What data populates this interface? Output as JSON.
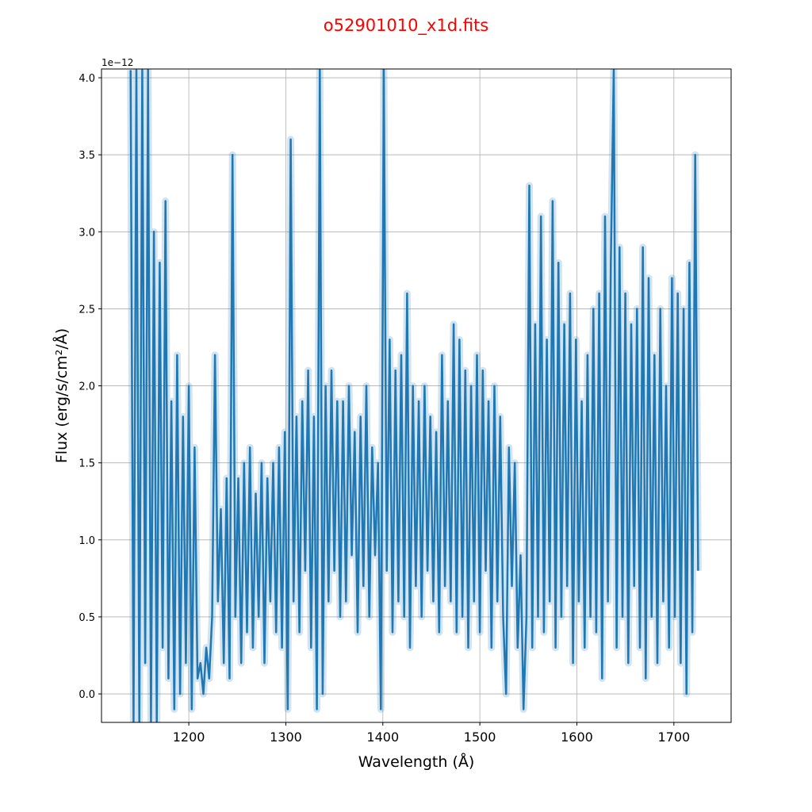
{
  "chart_data": {
    "type": "line",
    "title": "o52901010_x1d.fits",
    "title_color": "#ff0000",
    "xlabel": "Wavelength (Å)",
    "ylabel": "Flux (erg/s/cm²/Å)",
    "y_offset_label": "1e−12",
    "xlim": [
      1110,
      1759
    ],
    "ylim": [
      -0.185,
      4.057
    ],
    "grid": true,
    "line_color": "#1f77b4",
    "x_ticks": [
      1200,
      1300,
      1400,
      1500,
      1600,
      1700
    ],
    "x_tick_labels": [
      "1200",
      "1300",
      "1400",
      "1500",
      "1600",
      "1700"
    ],
    "y_ticks": [
      0.0,
      0.5,
      1.0,
      1.5,
      2.0,
      2.5,
      3.0,
      3.5,
      4.0
    ],
    "y_tick_labels": [
      "0.0",
      "0.5",
      "1.0",
      "1.5",
      "2.0",
      "2.5",
      "3.0",
      "3.5",
      "4.0"
    ],
    "series": [
      {
        "name": "flux (1e-12)",
        "x_start": 1140,
        "x_step": 3,
        "values": [
          4.05,
          -0.18,
          4.05,
          -0.18,
          4.05,
          0.2,
          4.05,
          -0.18,
          3.0,
          -0.18,
          2.8,
          0.3,
          3.2,
          0.1,
          1.9,
          -0.1,
          2.2,
          0.0,
          1.8,
          0.2,
          2.0,
          -0.1,
          1.6,
          0.1,
          0.2,
          0.0,
          0.3,
          0.1,
          0.5,
          2.2,
          0.6,
          1.2,
          0.2,
          1.4,
          0.1,
          3.5,
          0.5,
          1.4,
          0.2,
          1.5,
          0.4,
          1.6,
          0.3,
          1.3,
          0.5,
          1.5,
          0.2,
          1.4,
          0.6,
          1.5,
          0.4,
          1.6,
          0.3,
          1.7,
          -0.1,
          3.6,
          0.6,
          1.8,
          0.4,
          1.9,
          0.8,
          2.1,
          0.3,
          1.8,
          -0.1,
          4.05,
          0.0,
          2.0,
          0.6,
          2.1,
          0.8,
          1.9,
          0.5,
          1.9,
          0.6,
          2.0,
          0.9,
          1.7,
          0.4,
          1.8,
          0.7,
          2.0,
          0.5,
          1.6,
          0.9,
          1.5,
          -0.1,
          4.05,
          0.8,
          2.3,
          0.4,
          2.1,
          0.6,
          2.2,
          0.5,
          2.6,
          0.3,
          2.0,
          0.7,
          1.9,
          0.5,
          2.0,
          0.8,
          1.8,
          0.6,
          1.7,
          0.4,
          2.2,
          0.7,
          1.9,
          0.6,
          2.4,
          0.4,
          2.3,
          0.5,
          2.1,
          0.3,
          2.0,
          0.6,
          2.2,
          0.4,
          2.1,
          0.8,
          1.9,
          0.3,
          2.0,
          0.6,
          1.8,
          0.5,
          0.0,
          1.6,
          0.7,
          1.5,
          0.3,
          0.9,
          -0.1,
          0.5,
          3.3,
          0.3,
          2.4,
          0.5,
          3.1,
          0.4,
          2.3,
          0.6,
          3.2,
          0.3,
          2.8,
          0.5,
          2.4,
          0.7,
          2.6,
          0.2,
          2.3,
          0.6,
          1.9,
          0.3,
          2.2,
          0.5,
          2.5,
          0.4,
          2.6,
          0.1,
          3.1,
          0.6,
          2.8,
          4.05,
          0.3,
          2.9,
          0.5,
          2.6,
          0.2,
          2.4,
          0.7,
          2.5,
          0.3,
          2.9,
          0.1,
          2.7,
          0.5,
          2.2,
          0.2,
          2.5,
          0.6,
          2.0,
          0.3,
          2.7,
          0.5,
          2.6,
          0.2,
          2.5,
          0.0,
          2.8,
          0.4,
          3.5,
          0.8
        ]
      }
    ]
  }
}
